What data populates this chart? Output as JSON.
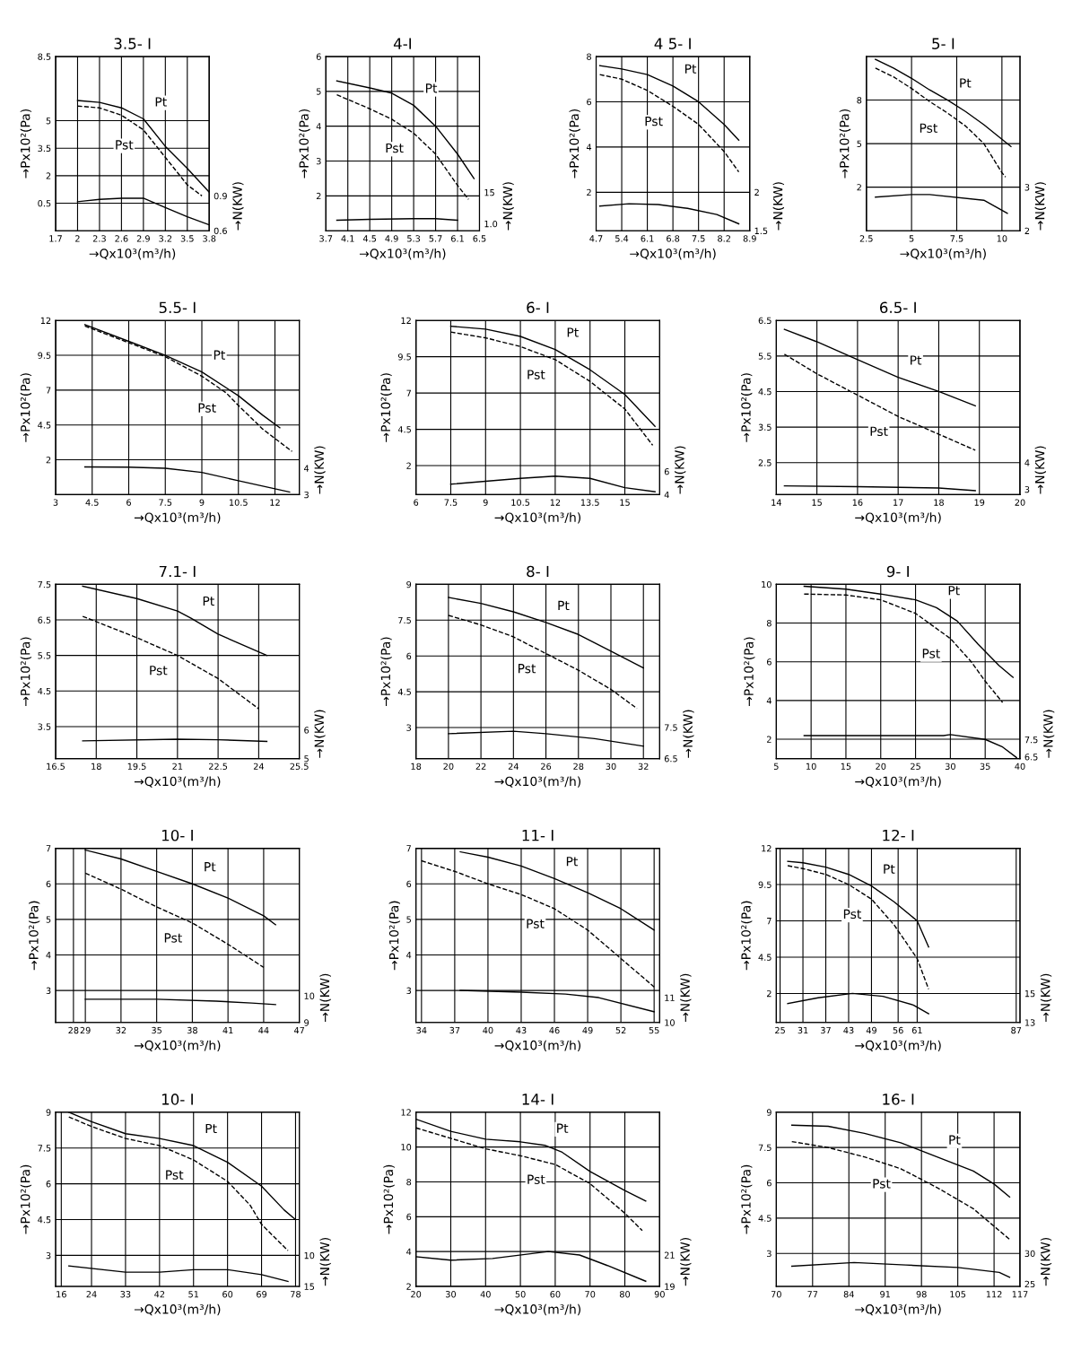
{
  "chart_data": [
    {
      "type": "line",
      "title": "3.5- I",
      "xlabel": "→Qx10³(m³/h)",
      "ylabel": "→Px10²(Pa)",
      "y2label": "→N(KW)",
      "grid": true,
      "legend": false,
      "xlim": [
        1.7,
        3.8
      ],
      "xticks": [
        1.7,
        2,
        2.3,
        2.6,
        2.9,
        3.2,
        3.5,
        3.8
      ],
      "ylim": [
        -1,
        8.5
      ],
      "yticks": [
        0.5,
        2,
        3.5,
        5,
        8.5
      ],
      "y2lim": [
        0.6,
        2.1
      ],
      "y2ticks": [
        0.6,
        0.9
      ],
      "series": [
        {
          "name": "Pt",
          "color": "#000000",
          "line_style": "solid",
          "x": [
            2,
            2.3,
            2.6,
            2.9,
            3.2,
            3.5,
            3.8
          ],
          "values": [
            6.1,
            6.0,
            5.7,
            5.1,
            3.6,
            2.4,
            1.1
          ]
        },
        {
          "name": "Pst",
          "color": "#000000",
          "line_style": "dashed",
          "x": [
            2,
            2.3,
            2.6,
            2.9,
            3.2,
            3.5,
            3.7
          ],
          "values": [
            5.8,
            5.7,
            5.3,
            4.5,
            3.0,
            1.5,
            0.9
          ]
        },
        {
          "color": "#000000",
          "line_style": "solid",
          "axis": "y2",
          "x": [
            2,
            2.3,
            2.6,
            2.9,
            3.2,
            3.5,
            3.8
          ],
          "values": [
            0.85,
            0.87,
            0.88,
            0.88,
            0.8,
            0.72,
            0.65
          ]
        }
      ]
    },
    {
      "type": "line",
      "title": "4-I",
      "xlabel": "→Qx10³(m³/h)",
      "ylabel": "→Px10²(Pa)",
      "y2label": "→N(KW)",
      "grid": true,
      "legend": false,
      "xlim": [
        3.7,
        6.5
      ],
      "xticks": [
        3.7,
        4.1,
        4.5,
        4.9,
        5.3,
        5.7,
        6.1,
        6.5
      ],
      "ylim": [
        1,
        6
      ],
      "yticks": [
        2,
        3,
        4,
        5,
        6
      ],
      "y2lim": [
        -2.1,
        75.7
      ],
      "y2ticks": [
        {
          "value": 1,
          "label": "1.0"
        },
        15
      ],
      "series": [
        {
          "name": "Pt",
          "color": "#000000",
          "line_style": "solid",
          "x": [
            3.9,
            4.5,
            4.9,
            5.3,
            5.7,
            6.1,
            6.4
          ],
          "values": [
            5.3,
            5.1,
            4.95,
            4.6,
            4.0,
            3.2,
            2.5
          ]
        },
        {
          "name": "Pst",
          "color": "#000000",
          "line_style": "dashed",
          "x": [
            3.9,
            4.5,
            4.9,
            5.3,
            5.7,
            6.1,
            6.3
          ],
          "values": [
            4.9,
            4.5,
            4.2,
            3.8,
            3.2,
            2.3,
            1.9
          ]
        },
        {
          "color": "#000000",
          "line_style": "solid",
          "axis": "y2",
          "x": [
            3.9,
            4.5,
            5.3,
            5.7,
            6.1
          ],
          "values": [
            2.6,
            3.0,
            3.3,
            3.3,
            2.6
          ]
        }
      ]
    },
    {
      "type": "line",
      "title": "4 5- I",
      "xlabel": "→Qx10³(m³/h)",
      "ylabel": "→Px10²(Pa)",
      "y2label": "→N(KW)",
      "grid": true,
      "legend": false,
      "xlim": [
        4.7,
        8.9
      ],
      "xticks": [
        4.7,
        5.4,
        6.1,
        6.8,
        7.5,
        8.2,
        8.9
      ],
      "ylim": [
        0.3,
        8
      ],
      "yticks": [
        2,
        4,
        6,
        8
      ],
      "y2lim": [
        1.5,
        3.76
      ],
      "y2ticks": [
        1.5,
        2
      ],
      "series": [
        {
          "name": "Pt",
          "color": "#000000",
          "line_style": "solid",
          "x": [
            4.8,
            5.4,
            6.1,
            6.8,
            7.5,
            8.2,
            8.6
          ],
          "values": [
            7.6,
            7.45,
            7.2,
            6.7,
            6.0,
            5.0,
            4.3
          ]
        },
        {
          "name": "Pst",
          "color": "#000000",
          "line_style": "dashed",
          "x": [
            4.8,
            5.4,
            6.1,
            6.8,
            7.5,
            8.2,
            8.6
          ],
          "values": [
            7.2,
            7.0,
            6.5,
            5.8,
            5.0,
            3.8,
            2.9
          ]
        },
        {
          "color": "#000000",
          "line_style": "solid",
          "axis": "y2",
          "x": [
            4.8,
            5.6,
            6.4,
            7.2,
            8.0,
            8.6
          ],
          "values": [
            1.82,
            1.85,
            1.84,
            1.79,
            1.71,
            1.59
          ]
        }
      ]
    },
    {
      "type": "line",
      "title": "5- I",
      "xlabel": "→Qx10³(m³/h)",
      "ylabel": "→Px10²(Pa)",
      "y2label": "→N(KW)",
      "grid": true,
      "legend": false,
      "xlim": [
        2.5,
        11
      ],
      "xticks": [
        2.5,
        5,
        7.5,
        10
      ],
      "ylim": [
        -1,
        11
      ],
      "yticks": [
        2,
        5,
        8
      ],
      "y2lim": [
        2,
        6
      ],
      "y2ticks": [
        2,
        3
      ],
      "series": [
        {
          "name": "Pt",
          "color": "#000000",
          "line_style": "solid",
          "x": [
            3,
            4,
            5,
            6,
            7,
            8,
            9,
            10,
            10.5
          ],
          "values": [
            10.8,
            10.2,
            9.5,
            8.7,
            8.0,
            7.2,
            6.3,
            5.3,
            4.8
          ]
        },
        {
          "name": "Pst",
          "color": "#000000",
          "line_style": "dashed",
          "x": [
            3,
            4,
            5,
            6,
            7,
            8,
            9,
            10,
            10.2
          ],
          "values": [
            10.2,
            9.6,
            8.8,
            7.9,
            7.1,
            6.2,
            5.0,
            3.0,
            2.7
          ]
        },
        {
          "color": "#000000",
          "line_style": "solid",
          "axis": "y2",
          "x": [
            3,
            5,
            6,
            9,
            10.3
          ],
          "values": [
            2.77,
            2.83,
            2.83,
            2.7,
            2.4
          ]
        }
      ]
    },
    {
      "type": "line",
      "title": "5.5- I",
      "xlabel": "→Qx10³(m³/h)",
      "ylabel": "→Px10²(Pa)",
      "y2label": "→N(KW)",
      "grid": true,
      "legend": false,
      "xlim": [
        3,
        13
      ],
      "xticks": [
        3,
        4.5,
        6,
        7.5,
        9,
        10.5,
        12
      ],
      "ylim": [
        -0.5,
        12
      ],
      "yticks": [
        2,
        4.5,
        7,
        9.5,
        12
      ],
      "y2lim": [
        3,
        9.6
      ],
      "y2ticks": [
        3,
        4
      ],
      "series": [
        {
          "name": "Pt",
          "color": "#000000",
          "line_style": "solid",
          "x": [
            4.2,
            6,
            7.5,
            9,
            10.5,
            11.5,
            12.2
          ],
          "values": [
            11.7,
            10.5,
            9.5,
            8.3,
            6.6,
            5.2,
            4.3
          ]
        },
        {
          "name": "Pst",
          "color": "#000000",
          "line_style": "dashed",
          "x": [
            4.2,
            6,
            7.5,
            9,
            10,
            10.5,
            11.5,
            12.7
          ],
          "values": [
            11.6,
            10.4,
            9.4,
            8.0,
            6.8,
            5.9,
            4.2,
            2.6
          ]
        },
        {
          "color": "#000000",
          "line_style": "solid",
          "axis": "y2",
          "x": [
            4.2,
            6,
            7.5,
            9,
            10.5,
            12.6
          ],
          "values": [
            4.05,
            4.04,
            4.0,
            3.84,
            3.53,
            3.1
          ]
        }
      ]
    },
    {
      "type": "line",
      "title": "6- I",
      "xlabel": "→Qx10³(m³/h)",
      "ylabel": "→Px10²(Pa)",
      "y2label": "→N(KW)",
      "grid": true,
      "legend": false,
      "xlim": [
        6,
        16.5
      ],
      "xticks": [
        6,
        7.5,
        9,
        10.5,
        12,
        13.5,
        15
      ],
      "ylim": [
        0,
        12
      ],
      "yticks": [
        2,
        4.5,
        7,
        9.5,
        12
      ],
      "y2lim": [
        4,
        19
      ],
      "y2ticks": [
        4,
        6
      ],
      "series": [
        {
          "name": "Pt",
          "color": "#000000",
          "line_style": "solid",
          "x": [
            7.5,
            9,
            10.5,
            12,
            13.5,
            15,
            16.3
          ],
          "values": [
            11.6,
            11.4,
            10.9,
            10.0,
            8.6,
            6.9,
            4.7
          ]
        },
        {
          "name": "Pst",
          "color": "#000000",
          "line_style": "dashed",
          "x": [
            7.5,
            9,
            10.5,
            12,
            13.5,
            15,
            16.2
          ],
          "values": [
            11.2,
            10.8,
            10.2,
            9.3,
            7.8,
            5.9,
            3.4
          ]
        },
        {
          "color": "#000000",
          "line_style": "solid",
          "axis": "y2",
          "x": [
            7.5,
            10.5,
            12,
            13.5,
            15,
            16.3
          ],
          "values": [
            4.9,
            5.4,
            5.6,
            5.4,
            4.6,
            4.25
          ]
        }
      ]
    },
    {
      "type": "line",
      "title": "6.5- I",
      "xlabel": "→Qx10³(m³/h)",
      "ylabel": "→Px10²(Pa)",
      "y2label": "→N(KW)",
      "grid": true,
      "legend": false,
      "xlim": [
        14,
        20
      ],
      "xticks": [
        14,
        15,
        16,
        17,
        18,
        19,
        20
      ],
      "ylim": [
        1.6,
        6.5
      ],
      "yticks": [
        2.5,
        3.5,
        4.5,
        5.5,
        6.5
      ],
      "y2lim": [
        2.8,
        9.33
      ],
      "y2ticks": [
        3,
        4
      ],
      "series": [
        {
          "name": "Pt",
          "color": "#000000",
          "line_style": "solid",
          "x": [
            14.2,
            15,
            16,
            17,
            18,
            18.9
          ],
          "values": [
            6.25,
            5.9,
            5.4,
            4.9,
            4.5,
            4.1
          ]
        },
        {
          "name": "Pst",
          "color": "#000000",
          "line_style": "dashed",
          "x": [
            14.2,
            15,
            16,
            17,
            18,
            18.9
          ],
          "values": [
            5.55,
            5.0,
            4.4,
            3.8,
            3.3,
            2.85
          ]
        },
        {
          "color": "#000000",
          "line_style": "solid",
          "axis": "y2",
          "x": [
            14.2,
            16,
            18,
            18.9
          ],
          "values": [
            3.13,
            3.1,
            3.05,
            2.95
          ]
        }
      ]
    },
    {
      "type": "line",
      "title": "7.1- I",
      "xlabel": "→Qx10³(m³/h)",
      "ylabel": "→Px10²(Pa)",
      "y2label": "→N(KW)",
      "grid": true,
      "legend": false,
      "xlim": [
        16.5,
        25.5
      ],
      "xticks": [
        16.5,
        18,
        19.5,
        21,
        22.5,
        24,
        25.5
      ],
      "ylim": [
        2.6,
        7.5
      ],
      "yticks": [
        3.5,
        4.5,
        5.5,
        6.5,
        7.5
      ],
      "y2lim": [
        5,
        11.1
      ],
      "y2ticks": [
        5,
        6
      ],
      "series": [
        {
          "name": "Pt",
          "color": "#000000",
          "line_style": "solid",
          "x": [
            17.5,
            19.5,
            21,
            21.5,
            22.5,
            24.3
          ],
          "values": [
            7.45,
            7.1,
            6.75,
            6.55,
            6.1,
            5.5
          ]
        },
        {
          "name": "Pst",
          "color": "#000000",
          "line_style": "dashed",
          "x": [
            17.5,
            19.5,
            21,
            22.5,
            24
          ],
          "values": [
            6.6,
            6.0,
            5.5,
            4.85,
            4.0
          ]
        },
        {
          "color": "#000000",
          "line_style": "solid",
          "axis": "y2",
          "x": [
            17.5,
            21,
            22.5,
            24.3
          ],
          "values": [
            5.62,
            5.68,
            5.66,
            5.6
          ]
        }
      ]
    },
    {
      "type": "line",
      "title": "8- I",
      "xlabel": "→Qx10³(m³/h)",
      "ylabel": "→Px10²(Pa)",
      "y2label": "→N(KW)",
      "grid": true,
      "legend": false,
      "xlim": [
        18,
        33
      ],
      "xticks": [
        18,
        20,
        22,
        24,
        26,
        28,
        30,
        32
      ],
      "ylim": [
        1.7,
        9
      ],
      "yticks": [
        3,
        4.5,
        6,
        7.5,
        9
      ],
      "y2lim": [
        6.5,
        12.1
      ],
      "y2ticks": [
        6.5,
        7.5
      ],
      "series": [
        {
          "name": "Pt",
          "color": "#000000",
          "line_style": "solid",
          "x": [
            20,
            22,
            24,
            26,
            28,
            30,
            32
          ],
          "values": [
            8.45,
            8.2,
            7.85,
            7.4,
            6.9,
            6.2,
            5.5
          ]
        },
        {
          "name": "Pst",
          "color": "#000000",
          "line_style": "dashed",
          "x": [
            20,
            22,
            24,
            26,
            28,
            30,
            31.6
          ],
          "values": [
            7.7,
            7.3,
            6.8,
            6.1,
            5.4,
            4.6,
            3.8
          ]
        },
        {
          "color": "#000000",
          "line_style": "solid",
          "axis": "y2",
          "x": [
            20,
            24,
            26,
            29,
            32
          ],
          "values": [
            7.3,
            7.38,
            7.3,
            7.14,
            6.9
          ]
        }
      ]
    },
    {
      "type": "line",
      "title": "9- I",
      "xlabel": "→Qx10³(m³/h)",
      "ylabel": "→Px10²(Pa)",
      "y2label": "→N(KW)",
      "grid": true,
      "legend": false,
      "xlim": [
        5,
        40
      ],
      "xticks": [
        5,
        10,
        15,
        20,
        25,
        30,
        35,
        40
      ],
      "ylim": [
        1,
        10
      ],
      "yticks": [
        2,
        4,
        6,
        8,
        10
      ],
      "y2lim": [
        6.4,
        16.5
      ],
      "y2ticks": [
        6.5,
        7.5
      ],
      "series": [
        {
          "name": "Pt",
          "color": "#000000",
          "line_style": "solid",
          "x": [
            9,
            15,
            20,
            25,
            28,
            31,
            34,
            37,
            39
          ],
          "values": [
            9.9,
            9.75,
            9.5,
            9.2,
            8.8,
            8.1,
            6.9,
            5.8,
            5.2
          ]
        },
        {
          "name": "Pst",
          "color": "#000000",
          "line_style": "dashed",
          "x": [
            9,
            15,
            20,
            25,
            30,
            33,
            35,
            37.5
          ],
          "values": [
            9.5,
            9.45,
            9.2,
            8.5,
            7.2,
            6.0,
            5.0,
            3.9
          ]
        },
        {
          "color": "#000000",
          "line_style": "solid",
          "axis": "y2",
          "x": [
            9,
            20,
            29,
            30,
            35,
            37.5,
            39.5
          ],
          "values": [
            7.73,
            7.73,
            7.73,
            7.79,
            7.51,
            7.07,
            6.46
          ]
        }
      ]
    },
    {
      "type": "line",
      "title": "10- I",
      "xlabel": "→Qx10³(m³/h)",
      "ylabel": "→Px10²(Pa)",
      "y2label": "→N(KW)",
      "grid": true,
      "legend": false,
      "xlim": [
        26.5,
        47
      ],
      "xticks": [
        28,
        29,
        32,
        35,
        38,
        41,
        44,
        47
      ],
      "ylim": [
        2.1,
        7
      ],
      "yticks": [
        3,
        4,
        5,
        6,
        7
      ],
      "y2lim": [
        9,
        15.53
      ],
      "y2ticks": [
        9,
        10
      ],
      "series": [
        {
          "name": "Pt",
          "color": "#000000",
          "line_style": "solid",
          "x": [
            29,
            32,
            35,
            38,
            41,
            44,
            45
          ],
          "values": [
            6.95,
            6.7,
            6.35,
            6.0,
            5.6,
            5.1,
            4.85
          ]
        },
        {
          "name": "Pst",
          "color": "#000000",
          "line_style": "dashed",
          "x": [
            29,
            32,
            35,
            38,
            41,
            44
          ],
          "values": [
            6.3,
            5.85,
            5.35,
            4.9,
            4.3,
            3.65
          ]
        },
        {
          "color": "#000000",
          "line_style": "solid",
          "axis": "y2",
          "x": [
            29,
            35,
            40,
            43,
            45
          ],
          "values": [
            9.87,
            9.87,
            9.8,
            9.73,
            9.67
          ]
        }
      ]
    },
    {
      "type": "line",
      "title": "11- I",
      "xlabel": "→Qx10³(m³/h)",
      "ylabel": "→Px10²(Pa)",
      "y2label": "→N(KW)",
      "grid": true,
      "legend": false,
      "xlim": [
        33.5,
        55.5
      ],
      "xticks": [
        34,
        37,
        40,
        43,
        46,
        49,
        52,
        55
      ],
      "ylim": [
        2.1,
        7
      ],
      "yticks": [
        3,
        4,
        5,
        6,
        7
      ],
      "y2lim": [
        10,
        17
      ],
      "y2ticks": [
        10,
        11
      ],
      "series": [
        {
          "name": "Pt",
          "color": "#000000",
          "line_style": "solid",
          "x": [
            37.5,
            40,
            43,
            46,
            49,
            52,
            55
          ],
          "values": [
            6.9,
            6.75,
            6.5,
            6.15,
            5.75,
            5.3,
            4.7
          ]
        },
        {
          "name": "Pst",
          "color": "#000000",
          "line_style": "dashed",
          "x": [
            34,
            37,
            40,
            43,
            46,
            49,
            52,
            55
          ],
          "values": [
            6.65,
            6.35,
            6.0,
            5.7,
            5.3,
            4.7,
            3.9,
            3.1
          ]
        },
        {
          "color": "#000000",
          "line_style": "solid",
          "axis": "y2",
          "x": [
            37.5,
            43,
            47,
            50,
            55
          ],
          "values": [
            11.29,
            11.22,
            11.14,
            11.0,
            10.43
          ]
        }
      ]
    },
    {
      "type": "line",
      "title": "12- I",
      "xlabel": "→Qx10³(m³/h)",
      "ylabel": "→Px10²(Pa)",
      "y2label": "→N(KW)",
      "grid": true,
      "legend": false,
      "xlim": [
        24,
        88
      ],
      "xticks": [
        25,
        31,
        37,
        43,
        49,
        56,
        61,
        87
      ],
      "ylim": [
        0,
        12
      ],
      "yticks": [
        2,
        4.5,
        7,
        9.5,
        12
      ],
      "y2lim": [
        13,
        25
      ],
      "y2ticks": [
        13,
        15
      ],
      "series": [
        {
          "name": "Pt",
          "color": "#000000",
          "line_style": "solid",
          "x": [
            27,
            31,
            37,
            43,
            49,
            55,
            61,
            64
          ],
          "values": [
            11.1,
            11.0,
            10.7,
            10.2,
            9.4,
            8.3,
            7.0,
            5.2
          ]
        },
        {
          "name": "Pst",
          "color": "#000000",
          "line_style": "dashed",
          "x": [
            27,
            31,
            37,
            43,
            49,
            55,
            61,
            64
          ],
          "values": [
            10.8,
            10.6,
            10.2,
            9.5,
            8.5,
            6.7,
            4.4,
            2.3
          ]
        },
        {
          "color": "#000000",
          "line_style": "solid",
          "axis": "y2",
          "x": [
            27,
            35,
            44,
            52,
            60,
            64
          ],
          "values": [
            14.3,
            14.7,
            15.0,
            14.8,
            14.2,
            13.6
          ]
        }
      ]
    },
    {
      "type": "line",
      "title": "10- I",
      "xlabel": "→Qx10³(m³/h)",
      "ylabel": "→Px10²(Pa)",
      "y2label": "→N(KW)",
      "grid": true,
      "legend": false,
      "xlim": [
        14.5,
        79
      ],
      "xticks": [
        16,
        24,
        33,
        42,
        51,
        60,
        69,
        78
      ],
      "ylim": [
        1.7,
        9
      ],
      "yticks": [
        3,
        4.5,
        6,
        7.5,
        9
      ],
      "y2lim": [
        15,
        -13.1
      ],
      "y2ticks": [
        15,
        10
      ],
      "series": [
        {
          "name": "Pt",
          "color": "#000000",
          "line_style": "solid",
          "x": [
            18,
            24,
            33,
            42,
            51,
            60,
            69,
            75,
            78
          ],
          "values": [
            9.0,
            8.6,
            8.1,
            7.9,
            7.6,
            6.9,
            5.9,
            4.9,
            4.5
          ]
        },
        {
          "name": "Pst",
          "color": "#000000",
          "line_style": "dashed",
          "x": [
            18,
            24,
            33,
            42,
            51,
            60,
            66,
            69,
            76
          ],
          "values": [
            8.8,
            8.4,
            7.9,
            7.6,
            7.0,
            6.1,
            5.1,
            4.3,
            3.2
          ]
        },
        {
          "color": "#000000",
          "line_style": "solid",
          "axis": "y2",
          "x": [
            18,
            33,
            42,
            51,
            60,
            69,
            76
          ],
          "values": [
            11.7,
            12.7,
            12.7,
            12.3,
            12.3,
            13.1,
            14.2
          ]
        }
      ]
    },
    {
      "type": "line",
      "title": "14- I",
      "xlabel": "→Qx10³(m³/h)",
      "ylabel": "→Px10²(Pa)",
      "y2label": "→N(KW)",
      "grid": true,
      "legend": false,
      "xlim": [
        20,
        90
      ],
      "xticks": [
        20,
        30,
        40,
        50,
        60,
        70,
        80,
        90
      ],
      "ylim": [
        2,
        12
      ],
      "yticks": [
        2,
        4,
        6,
        8,
        10,
        12
      ],
      "y2lim": [
        19,
        30.1
      ],
      "y2ticks": [
        19,
        21
      ],
      "series": [
        {
          "name": "Pt",
          "color": "#000000",
          "line_style": "solid",
          "x": [
            20,
            30,
            40,
            50,
            57,
            62,
            70,
            80,
            86
          ],
          "values": [
            11.6,
            10.9,
            10.45,
            10.3,
            10.1,
            9.7,
            8.6,
            7.5,
            6.9
          ]
        },
        {
          "name": "Pst",
          "color": "#000000",
          "line_style": "dashed",
          "x": [
            20,
            30,
            40,
            50,
            60,
            70,
            80,
            85
          ],
          "values": [
            11.1,
            10.5,
            9.9,
            9.5,
            9.0,
            7.9,
            6.2,
            5.2
          ]
        },
        {
          "color": "#000000",
          "line_style": "solid",
          "axis": "y2",
          "x": [
            20,
            30,
            42,
            58,
            67,
            75,
            86
          ],
          "values": [
            20.89,
            20.67,
            20.78,
            21.22,
            21.0,
            20.33,
            19.33
          ]
        }
      ]
    },
    {
      "type": "line",
      "title": "16- I",
      "xlabel": "→Qx10³(m³/h)",
      "ylabel": "→Px10²(Pa)",
      "y2label": "→N(KW)",
      "grid": true,
      "legend": false,
      "xlim": [
        70,
        117
      ],
      "xticks": [
        70,
        77,
        84,
        91,
        98,
        105,
        112,
        117
      ],
      "ylim": [
        1.6,
        9
      ],
      "yticks": [
        3,
        4.5,
        6,
        7.5,
        9
      ],
      "y2lim": [
        24.6,
        53.1
      ],
      "y2ticks": [
        25,
        30
      ],
      "series": [
        {
          "name": "Pt",
          "color": "#000000",
          "line_style": "solid",
          "x": [
            73,
            80,
            87,
            94,
            101,
            108,
            112,
            115
          ],
          "values": [
            8.45,
            8.4,
            8.1,
            7.7,
            7.1,
            6.5,
            5.95,
            5.4
          ]
        },
        {
          "name": "Pst",
          "color": "#000000",
          "line_style": "dashed",
          "x": [
            73,
            80,
            87,
            94,
            101,
            108,
            115
          ],
          "values": [
            7.75,
            7.5,
            7.1,
            6.6,
            5.8,
            4.9,
            3.6
          ]
        },
        {
          "color": "#000000",
          "line_style": "solid",
          "axis": "y2",
          "x": [
            73,
            85,
            95,
            105,
            113,
            115
          ],
          "values": [
            27.9,
            28.5,
            28.1,
            27.7,
            26.9,
            26.1
          ]
        }
      ]
    }
  ]
}
